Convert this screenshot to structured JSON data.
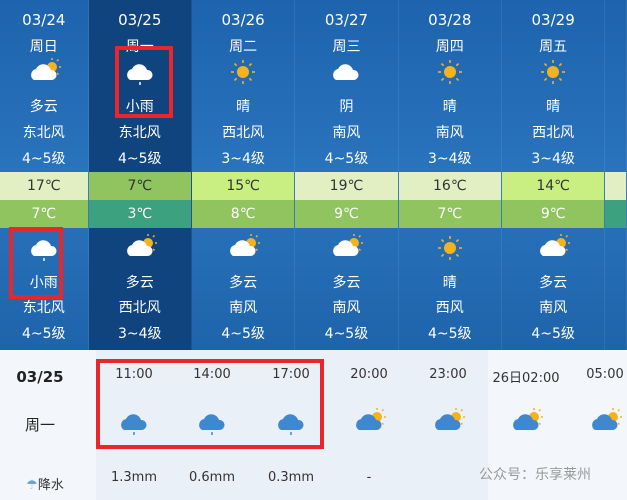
{
  "days": [
    {
      "date": "03/24",
      "weekday": "周日",
      "day_icon": "partly-cloudy-icon",
      "day_desc": "多云",
      "day_wind": "东北风",
      "day_level": "4~5级",
      "high": "17℃",
      "low": "7℃",
      "night_icon": "light-rain-icon",
      "night_desc": "小雨",
      "night_wind": "东北风",
      "night_level": "4~5级",
      "hi_color": "#e2efc2",
      "lo_color": "#8fc45e"
    },
    {
      "date": "03/25",
      "weekday": "周一",
      "day_icon": "light-rain-icon",
      "day_desc": "小雨",
      "day_wind": "东北风",
      "day_level": "4~5级",
      "high": "7℃",
      "low": "3℃",
      "night_icon": "partly-cloudy-icon",
      "night_desc": "多云",
      "night_wind": "西北风",
      "night_level": "3~4级",
      "hi_color": "#8fc45e",
      "lo_color": "#3ba17e"
    },
    {
      "date": "03/26",
      "weekday": "周二",
      "day_icon": "sunny-icon",
      "day_desc": "晴",
      "day_wind": "西北风",
      "day_level": "3~4级",
      "high": "15℃",
      "low": "8℃",
      "night_icon": "partly-cloudy-icon",
      "night_desc": "多云",
      "night_wind": "南风",
      "night_level": "4~5级",
      "hi_color": "#c9ef82",
      "lo_color": "#8fc45e"
    },
    {
      "date": "03/27",
      "weekday": "周三",
      "day_icon": "overcast-icon",
      "day_desc": "阴",
      "day_wind": "南风",
      "day_level": "4~5级",
      "high": "19℃",
      "low": "9℃",
      "night_icon": "partly-cloudy-icon",
      "night_desc": "多云",
      "night_wind": "南风",
      "night_level": "4~5级",
      "hi_color": "#e2efc2",
      "lo_color": "#8fc45e"
    },
    {
      "date": "03/28",
      "weekday": "周四",
      "day_icon": "sunny-icon",
      "day_desc": "晴",
      "day_wind": "南风",
      "day_level": "3~4级",
      "high": "16℃",
      "low": "7℃",
      "night_icon": "sunny-icon",
      "night_desc": "晴",
      "night_wind": "西风",
      "night_level": "4~5级",
      "hi_color": "#e2efc2",
      "lo_color": "#8fc45e"
    },
    {
      "date": "03/29",
      "weekday": "周五",
      "day_icon": "sunny-icon",
      "day_desc": "晴",
      "day_wind": "西北风",
      "day_level": "3~4级",
      "high": "14℃",
      "low": "9℃",
      "night_icon": "partly-cloudy-icon",
      "night_desc": "多云",
      "night_wind": "南风",
      "night_level": "4~5级",
      "hi_color": "#c9ef82",
      "lo_color": "#8fc45e"
    }
  ],
  "hourly": {
    "date": "03/25",
    "weekday": "周一",
    "precip_label": "降水",
    "precip_icon": "rain-cloud-icon",
    "slots": [
      {
        "time": "11:00",
        "icon": "light-rain-icon",
        "precip": "1.3mm"
      },
      {
        "time": "14:00",
        "icon": "light-rain-icon",
        "precip": "0.6mm"
      },
      {
        "time": "17:00",
        "icon": "light-rain-icon",
        "precip": "0.3mm"
      },
      {
        "time": "20:00",
        "icon": "partly-cloudy-icon",
        "precip": "-"
      },
      {
        "time": "23:00",
        "icon": "partly-cloudy-icon",
        "precip": ""
      },
      {
        "time": "26日02:00",
        "icon": "partly-cloudy-icon",
        "precip": ""
      },
      {
        "time": "05:00",
        "icon": "partly-cloudy-icon",
        "precip": ""
      }
    ]
  },
  "watermark": "公众号：乐享莱州",
  "highlight_color": "#e8262c"
}
